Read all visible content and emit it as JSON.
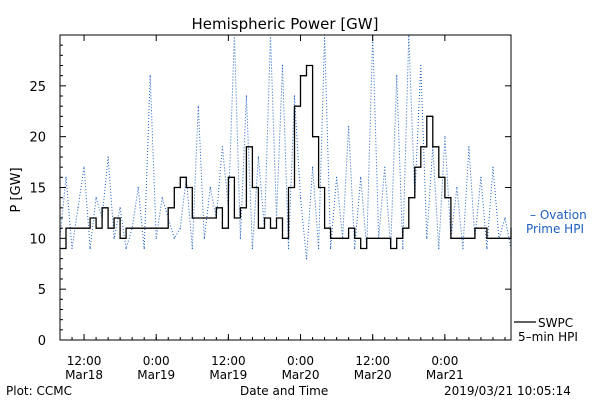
{
  "chart_data": {
    "type": "line",
    "title": "Hemispheric Power [GW]",
    "xlabel": "Date and Time",
    "ylabel": "P [GW]",
    "ylim": [
      0,
      30
    ],
    "xlim": [
      "2019-03-18T08:00",
      "2019-03-21T11:00"
    ],
    "grid": false,
    "yticks": [
      0,
      5,
      10,
      15,
      20,
      25
    ],
    "xticks": [
      {
        "t": "2019-03-18T12:00",
        "line1": "12:00",
        "line2": "Mar18"
      },
      {
        "t": "2019-03-19T00:00",
        "line1": "0:00",
        "line2": "Mar19"
      },
      {
        "t": "2019-03-19T12:00",
        "line1": "12:00",
        "line2": "Mar19"
      },
      {
        "t": "2019-03-20T00:00",
        "line1": "0:00",
        "line2": "Mar20"
      },
      {
        "t": "2019-03-20T12:00",
        "line1": "12:00",
        "line2": "Mar20"
      },
      {
        "t": "2019-03-21T00:00",
        "line1": "0:00",
        "line2": "Mar21"
      }
    ],
    "series": [
      {
        "name": "Ovation Prime HPI",
        "style": "dotted",
        "color": "#1f5fbf",
        "x": [
          "2019-03-18T08:00",
          "2019-03-18T09:00",
          "2019-03-18T10:00",
          "2019-03-18T11:00",
          "2019-03-18T12:00",
          "2019-03-18T13:00",
          "2019-03-18T14:00",
          "2019-03-18T15:00",
          "2019-03-18T16:00",
          "2019-03-18T17:00",
          "2019-03-18T18:00",
          "2019-03-18T19:00",
          "2019-03-18T20:00",
          "2019-03-18T21:00",
          "2019-03-18T22:00",
          "2019-03-18T23:00",
          "2019-03-19T00:00",
          "2019-03-19T01:00",
          "2019-03-19T02:00",
          "2019-03-19T03:00",
          "2019-03-19T04:00",
          "2019-03-19T05:00",
          "2019-03-19T06:00",
          "2019-03-19T07:00",
          "2019-03-19T08:00",
          "2019-03-19T09:00",
          "2019-03-19T10:00",
          "2019-03-19T11:00",
          "2019-03-19T12:00",
          "2019-03-19T13:00",
          "2019-03-19T14:00",
          "2019-03-19T15:00",
          "2019-03-19T16:00",
          "2019-03-19T17:00",
          "2019-03-19T18:00",
          "2019-03-19T19:00",
          "2019-03-19T20:00",
          "2019-03-19T21:00",
          "2019-03-19T22:00",
          "2019-03-19T23:00",
          "2019-03-20T00:00",
          "2019-03-20T01:00",
          "2019-03-20T02:00",
          "2019-03-20T03:00",
          "2019-03-20T04:00",
          "2019-03-20T05:00",
          "2019-03-20T06:00",
          "2019-03-20T07:00",
          "2019-03-20T08:00",
          "2019-03-20T09:00",
          "2019-03-20T10:00",
          "2019-03-20T11:00",
          "2019-03-20T12:00",
          "2019-03-20T13:00",
          "2019-03-20T14:00",
          "2019-03-20T15:00",
          "2019-03-20T16:00",
          "2019-03-20T17:00",
          "2019-03-20T18:00",
          "2019-03-20T19:00",
          "2019-03-20T20:00",
          "2019-03-20T21:00",
          "2019-03-20T22:00",
          "2019-03-20T23:00",
          "2019-03-21T00:00",
          "2019-03-21T01:00",
          "2019-03-21T02:00",
          "2019-03-21T03:00",
          "2019-03-21T04:00",
          "2019-03-21T05:00",
          "2019-03-21T06:00",
          "2019-03-21T07:00",
          "2019-03-21T08:00",
          "2019-03-21T09:00",
          "2019-03-21T10:00",
          "2019-03-21T11:00"
        ],
        "values": [
          10,
          16,
          9,
          13,
          17,
          9,
          14,
          12,
          18,
          10,
          13,
          9,
          11,
          15,
          9,
          26,
          10,
          14,
          12,
          10,
          11,
          16,
          9,
          23,
          10,
          15,
          12,
          19,
          13,
          30,
          10,
          24,
          9,
          18,
          11,
          30,
          12,
          27,
          9,
          24,
          14,
          8,
          17,
          9,
          30,
          9,
          16,
          10,
          21,
          9,
          16,
          9,
          30,
          10,
          17,
          9,
          26,
          9,
          30,
          14,
          27,
          10,
          19,
          9,
          20,
          10,
          15,
          9,
          19,
          10,
          16,
          9,
          17,
          10,
          12,
          9
        ]
      },
      {
        "name": "SWPC 5-min HPI",
        "style": "solid",
        "color": "#000000",
        "x": [
          "2019-03-18T08:00",
          "2019-03-18T09:00",
          "2019-03-18T10:00",
          "2019-03-18T11:00",
          "2019-03-18T12:00",
          "2019-03-18T13:00",
          "2019-03-18T14:00",
          "2019-03-18T15:00",
          "2019-03-18T16:00",
          "2019-03-18T17:00",
          "2019-03-18T18:00",
          "2019-03-18T19:00",
          "2019-03-18T20:00",
          "2019-03-18T21:00",
          "2019-03-18T22:00",
          "2019-03-18T23:00",
          "2019-03-19T00:00",
          "2019-03-19T01:00",
          "2019-03-19T02:00",
          "2019-03-19T03:00",
          "2019-03-19T04:00",
          "2019-03-19T05:00",
          "2019-03-19T06:00",
          "2019-03-19T07:00",
          "2019-03-19T08:00",
          "2019-03-19T09:00",
          "2019-03-19T10:00",
          "2019-03-19T11:00",
          "2019-03-19T12:00",
          "2019-03-19T13:00",
          "2019-03-19T14:00",
          "2019-03-19T15:00",
          "2019-03-19T16:00",
          "2019-03-19T17:00",
          "2019-03-19T18:00",
          "2019-03-19T19:00",
          "2019-03-19T20:00",
          "2019-03-19T21:00",
          "2019-03-19T22:00",
          "2019-03-19T23:00",
          "2019-03-20T00:00",
          "2019-03-20T01:00",
          "2019-03-20T02:00",
          "2019-03-20T03:00",
          "2019-03-20T04:00",
          "2019-03-20T05:00",
          "2019-03-20T06:00",
          "2019-03-20T07:00",
          "2019-03-20T08:00",
          "2019-03-20T09:00",
          "2019-03-20T10:00",
          "2019-03-20T11:00",
          "2019-03-20T12:00",
          "2019-03-20T13:00",
          "2019-03-20T14:00",
          "2019-03-20T15:00",
          "2019-03-20T16:00",
          "2019-03-20T17:00",
          "2019-03-20T18:00",
          "2019-03-20T19:00",
          "2019-03-20T20:00",
          "2019-03-20T21:00",
          "2019-03-20T22:00",
          "2019-03-20T23:00",
          "2019-03-21T00:00",
          "2019-03-21T01:00",
          "2019-03-21T02:00",
          "2019-03-21T03:00",
          "2019-03-21T04:00",
          "2019-03-21T05:00",
          "2019-03-21T06:00",
          "2019-03-21T07:00",
          "2019-03-21T08:00",
          "2019-03-21T09:00",
          "2019-03-21T10:00",
          "2019-03-21T11:00"
        ],
        "values": [
          9,
          11,
          11,
          11,
          11,
          12,
          11,
          13,
          11,
          12,
          10,
          11,
          11,
          11,
          11,
          11,
          11,
          11,
          13,
          15,
          16,
          15,
          12,
          12,
          12,
          12,
          13,
          11,
          16,
          12,
          13,
          19,
          15,
          11,
          12,
          11,
          12,
          10,
          15,
          23,
          26,
          27,
          20,
          15,
          11,
          10,
          10,
          10,
          11,
          10,
          9,
          10,
          10,
          10,
          10,
          9,
          10,
          11,
          14,
          17,
          19,
          22,
          19,
          16,
          14,
          10,
          10,
          10,
          10,
          11,
          11,
          10,
          10,
          10,
          10,
          11
        ]
      }
    ]
  },
  "legend": {
    "ovation_line1": "– Ovation",
    "ovation_line2": "Prime HPI",
    "swpc_line1": "SWPC",
    "swpc_line2": "5–min HPI",
    "ovation_color": "#1f5fbf"
  },
  "footer": {
    "left": "Plot: CCMC",
    "center": "Date and Time",
    "right": "2019/03/21 10:05:14"
  }
}
